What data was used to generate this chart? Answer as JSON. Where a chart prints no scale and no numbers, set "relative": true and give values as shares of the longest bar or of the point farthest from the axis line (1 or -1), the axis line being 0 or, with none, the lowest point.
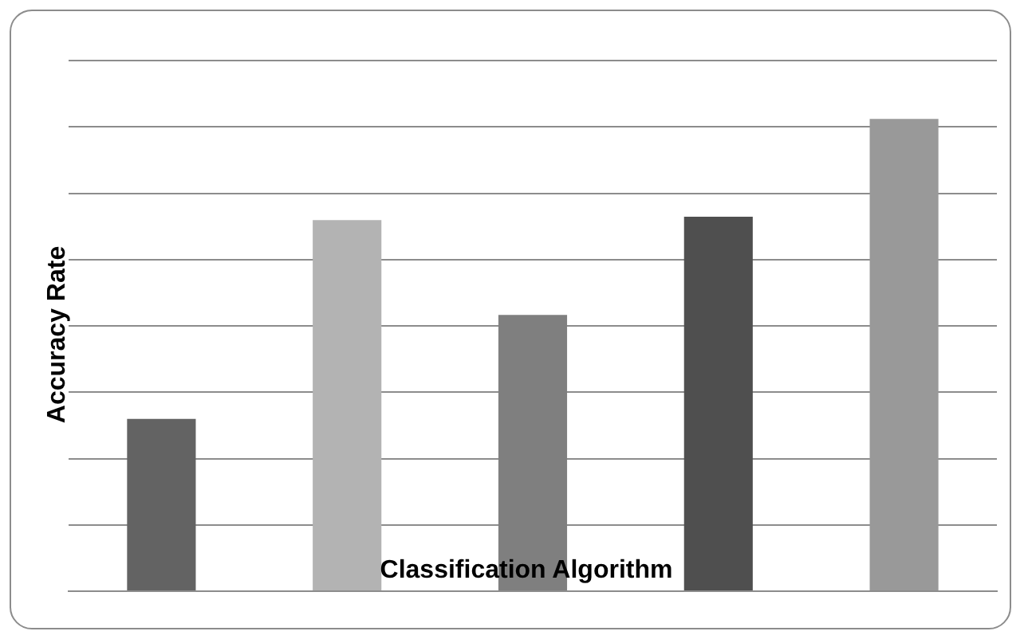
{
  "chart_data": {
    "type": "bar",
    "xlabel": "Classification Algorithm",
    "ylabel": "Accuracy Rate",
    "relative": true,
    "grid": "y",
    "categories": [
      null,
      null,
      null,
      null,
      null
    ],
    "values": [
      0.365,
      0.786,
      0.585,
      0.793,
      1
    ],
    "colors": [
      "#636363",
      "#b3b3b3",
      "#7f7f7f",
      "#4f4f4f",
      "#999999"
    ]
  }
}
